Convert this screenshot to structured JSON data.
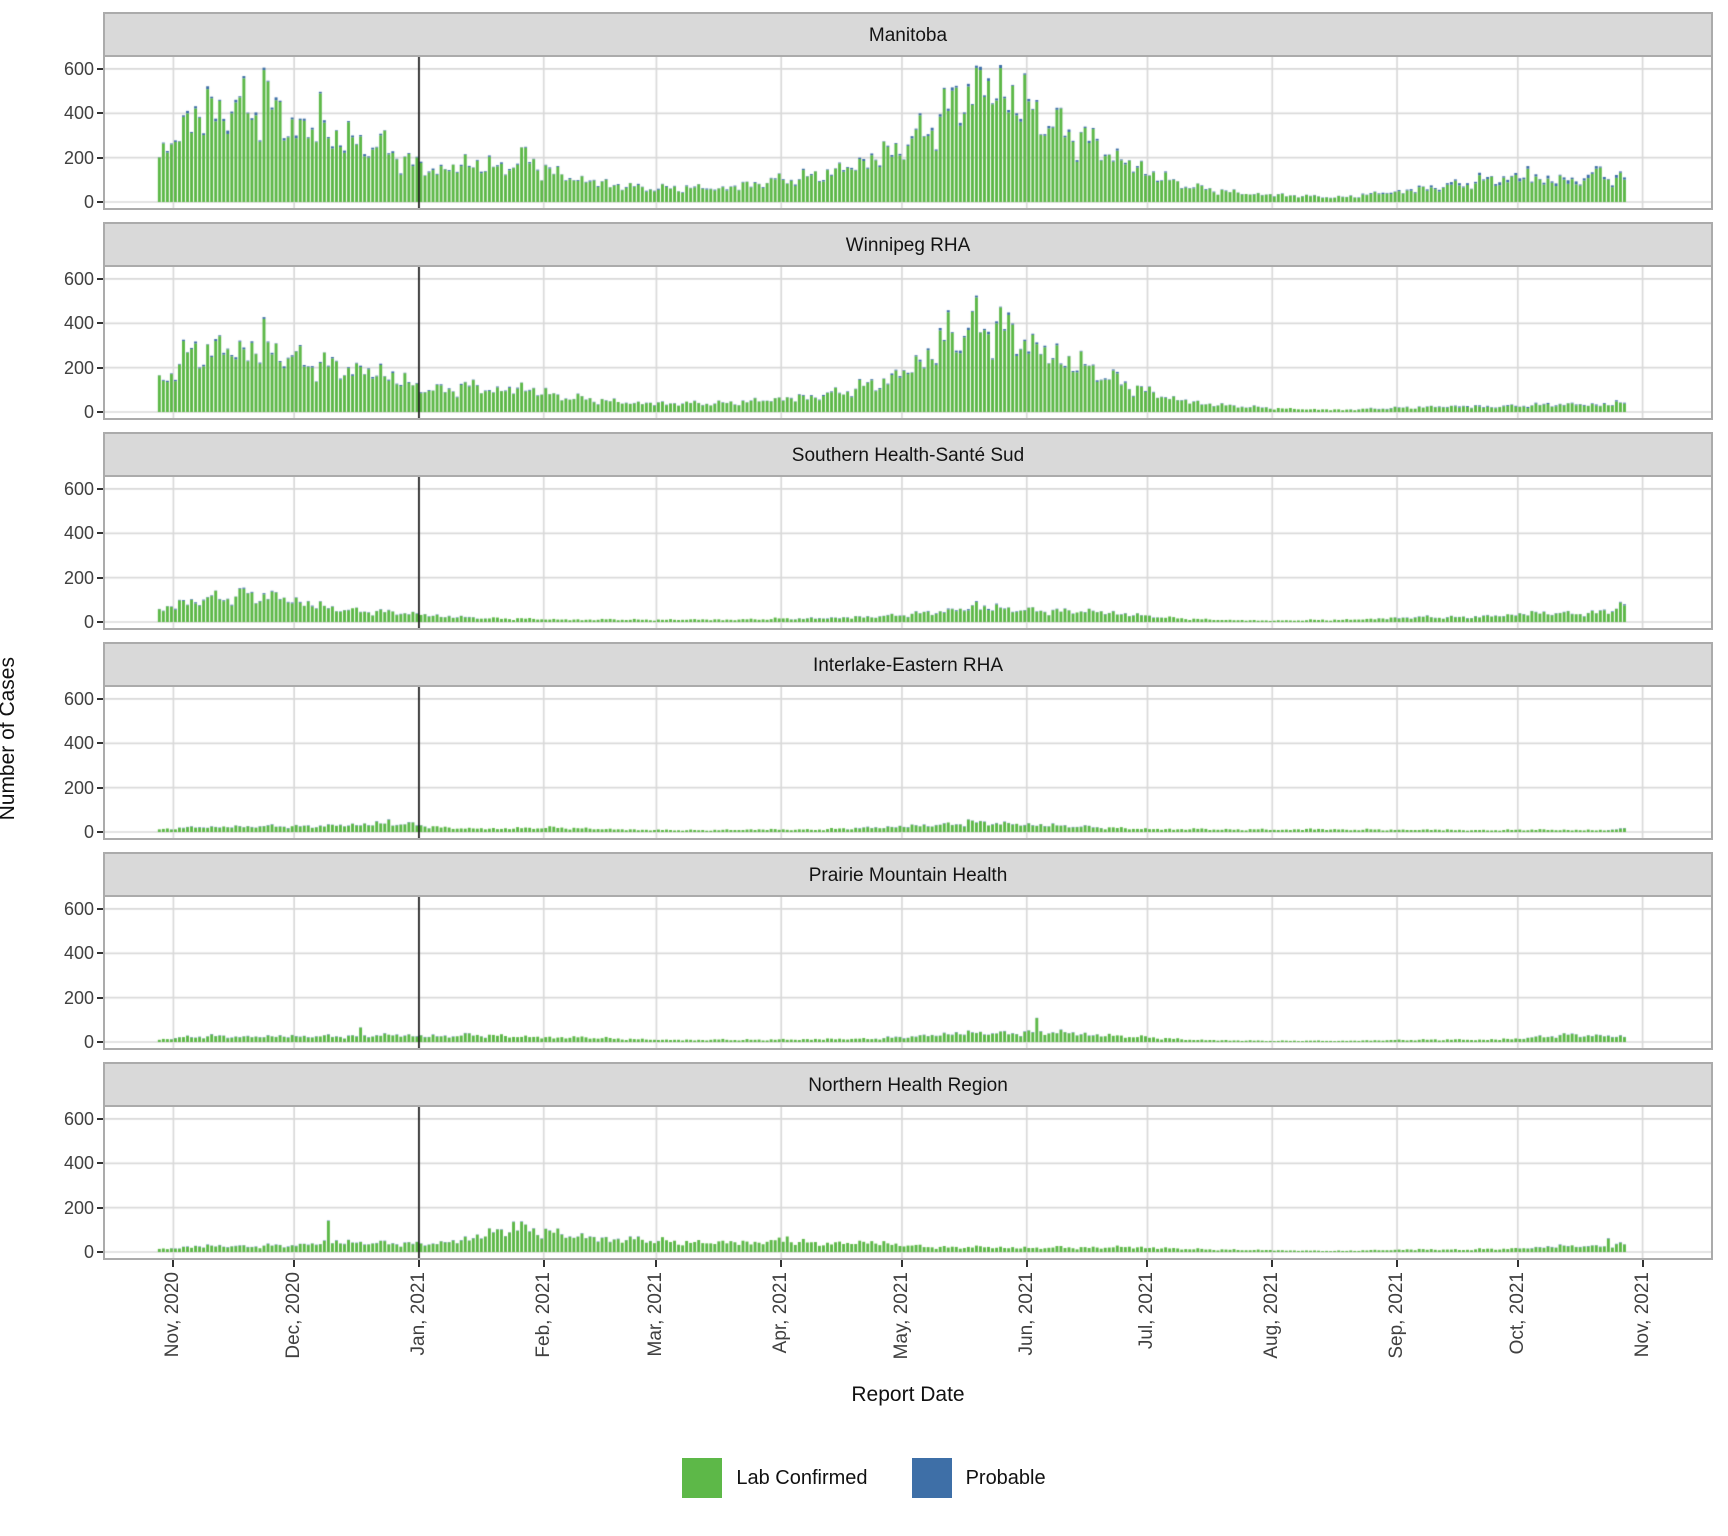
{
  "chart_data": {
    "type": "bar",
    "stacked": true,
    "orientation": "vertical",
    "title": "",
    "xlabel": "Report Date",
    "ylabel": "Number of Cases",
    "yticks": [
      0,
      200,
      400,
      600
    ],
    "ylim": [
      0,
      650
    ],
    "grid": "major-gray-on-white",
    "facet_layout": "6 stacked panels sharing x axis",
    "sampling_note": "Chart shows daily case bars from 2020-10-28 to 2021-10-27. Values below are weekly anchor estimates (cases/day) read from the chart; 'spikes' are standout single-day bars (d = days after 2020-10-28).",
    "anchor_start_date": "2020-10-28",
    "anchor_step_days": 7,
    "anchor_dates": [
      "2020-10-28",
      "2020-11-04",
      "2020-11-11",
      "2020-11-18",
      "2020-11-25",
      "2020-12-02",
      "2020-12-09",
      "2020-12-16",
      "2020-12-23",
      "2020-12-30",
      "2021-01-06",
      "2021-01-13",
      "2021-01-20",
      "2021-01-27",
      "2021-02-03",
      "2021-02-10",
      "2021-02-17",
      "2021-02-24",
      "2021-03-03",
      "2021-03-10",
      "2021-03-17",
      "2021-03-24",
      "2021-03-31",
      "2021-04-07",
      "2021-04-14",
      "2021-04-21",
      "2021-04-28",
      "2021-05-05",
      "2021-05-12",
      "2021-05-19",
      "2021-05-26",
      "2021-06-02",
      "2021-06-09",
      "2021-06-16",
      "2021-06-23",
      "2021-06-30",
      "2021-07-07",
      "2021-07-14",
      "2021-07-21",
      "2021-07-28",
      "2021-08-04",
      "2021-08-11",
      "2021-08-18",
      "2021-08-25",
      "2021-09-01",
      "2021-09-08",
      "2021-09-15",
      "2021-09-22",
      "2021-09-29",
      "2021-10-06",
      "2021-10-13",
      "2021-10-20",
      "2021-10-27"
    ],
    "reference_line_date": "2021-01-01",
    "reference_line_day": 65,
    "x_ticks": [
      {
        "label": "Nov, 2020",
        "day": 4
      },
      {
        "label": "Dec, 2020",
        "day": 34
      },
      {
        "label": "Jan, 2021",
        "day": 65
      },
      {
        "label": "Feb, 2021",
        "day": 96
      },
      {
        "label": "Mar, 2021",
        "day": 124
      },
      {
        "label": "Apr, 2021",
        "day": 155
      },
      {
        "label": "May, 2021",
        "day": 185
      },
      {
        "label": "Jun, 2021",
        "day": 216
      },
      {
        "label": "Jul, 2021",
        "day": 246
      },
      {
        "label": "Aug, 2021",
        "day": 277
      },
      {
        "label": "Sep, 2021",
        "day": 308
      },
      {
        "label": "Oct, 2021",
        "day": 338
      },
      {
        "label": "Nov, 2021",
        "day": 369
      }
    ],
    "panels": [
      {
        "title": "Manitoba",
        "lab_confirmed": [
          190,
          380,
          420,
          430,
          420,
          330,
          300,
          270,
          250,
          170,
          140,
          180,
          150,
          200,
          130,
          100,
          80,
          65,
          60,
          65,
          60,
          80,
          100,
          110,
          140,
          180,
          230,
          300,
          420,
          540,
          500,
          420,
          330,
          280,
          200,
          140,
          90,
          60,
          45,
          35,
          30,
          25,
          20,
          35,
          45,
          60,
          75,
          95,
          105,
          100,
          90,
          115,
          105
        ],
        "probable": [
          3,
          5,
          6,
          6,
          6,
          5,
          5,
          4,
          4,
          3,
          3,
          3,
          3,
          3,
          2,
          2,
          2,
          2,
          2,
          2,
          2,
          2,
          2,
          3,
          3,
          4,
          4,
          5,
          6,
          7,
          6,
          5,
          5,
          4,
          4,
          3,
          2,
          2,
          1,
          1,
          1,
          1,
          1,
          2,
          3,
          4,
          5,
          5,
          6,
          6,
          7,
          6,
          6
        ],
        "spikes": [
          {
            "d": 26,
            "v": 595
          },
          {
            "d": 40,
            "v": 490
          },
          {
            "d": 204,
            "v": 595
          },
          {
            "d": 340,
            "v": 150
          },
          {
            "d": 358,
            "v": 155
          }
        ]
      },
      {
        "title": "Winnipeg RHA",
        "lab_confirmed": [
          130,
          260,
          290,
          280,
          290,
          230,
          210,
          190,
          175,
          120,
          95,
          120,
          95,
          110,
          75,
          60,
          48,
          40,
          38,
          40,
          38,
          48,
          60,
          65,
          85,
          115,
          150,
          230,
          310,
          400,
          380,
          300,
          240,
          200,
          140,
          95,
          60,
          38,
          28,
          20,
          15,
          12,
          10,
          14,
          18,
          22,
          25,
          22,
          25,
          30,
          35,
          30,
          40
        ],
        "probable": [
          2,
          4,
          4,
          4,
          4,
          3,
          3,
          3,
          3,
          2,
          2,
          2,
          2,
          2,
          1,
          1,
          1,
          1,
          1,
          1,
          1,
          1,
          1,
          2,
          2,
          2,
          3,
          4,
          5,
          5,
          5,
          4,
          4,
          3,
          3,
          2,
          1,
          1,
          1,
          1,
          0,
          0,
          0,
          1,
          1,
          1,
          2,
          2,
          2,
          2,
          2,
          2,
          2
        ],
        "spikes": [
          {
            "d": 26,
            "v": 420
          },
          {
            "d": 196,
            "v": 450
          }
        ]
      },
      {
        "title": "Southern Health-Santé Sud",
        "lab_confirmed": [
          55,
          90,
          110,
          115,
          120,
          90,
          65,
          50,
          45,
          38,
          25,
          20,
          16,
          15,
          12,
          10,
          12,
          10,
          10,
          12,
          10,
          12,
          15,
          15,
          18,
          22,
          28,
          38,
          50,
          65,
          60,
          52,
          48,
          50,
          38,
          28,
          18,
          12,
          9,
          7,
          7,
          9,
          10,
          14,
          18,
          22,
          20,
          24,
          32,
          42,
          38,
          40,
          65
        ],
        "probable": [
          1,
          2,
          2,
          2,
          2,
          2,
          1,
          1,
          1,
          1,
          1,
          1,
          0,
          0,
          0,
          0,
          0,
          0,
          0,
          0,
          0,
          0,
          0,
          1,
          1,
          1,
          1,
          1,
          2,
          2,
          2,
          1,
          1,
          1,
          1,
          1,
          0,
          0,
          0,
          0,
          0,
          0,
          0,
          0,
          1,
          1,
          1,
          1,
          1,
          1,
          1,
          1,
          2
        ],
        "spikes": [
          {
            "d": 21,
            "v": 150
          },
          {
            "d": 203,
            "v": 90
          },
          {
            "d": 363,
            "v": 88
          }
        ]
      },
      {
        "title": "Interlake-Eastern RHA",
        "lab_confirmed": [
          12,
          20,
          22,
          24,
          26,
          24,
          28,
          32,
          38,
          34,
          20,
          16,
          15,
          18,
          20,
          16,
          13,
          10,
          9,
          8,
          9,
          11,
          12,
          10,
          14,
          18,
          22,
          28,
          34,
          42,
          38,
          32,
          28,
          22,
          18,
          14,
          12,
          14,
          10,
          12,
          10,
          14,
          10,
          11,
          9,
          11,
          9,
          8,
          9,
          11,
          9,
          8,
          13
        ],
        "probable": [
          0,
          1,
          1,
          1,
          1,
          1,
          1,
          1,
          1,
          1,
          0,
          0,
          0,
          0,
          0,
          0,
          0,
          0,
          0,
          0,
          0,
          0,
          0,
          0,
          0,
          1,
          1,
          1,
          1,
          1,
          1,
          1,
          1,
          1,
          0,
          0,
          0,
          0,
          0,
          0,
          0,
          0,
          0,
          0,
          0,
          0,
          0,
          0,
          0,
          0,
          0,
          0,
          1
        ],
        "spikes": [
          {
            "d": 57,
            "v": 55
          },
          {
            "d": 201,
            "v": 56
          }
        ]
      },
      {
        "title": "Prairie Mountain Health",
        "lab_confirmed": [
          12,
          22,
          26,
          22,
          26,
          24,
          26,
          24,
          32,
          28,
          24,
          32,
          28,
          24,
          20,
          22,
          16,
          12,
          10,
          9,
          11,
          9,
          11,
          12,
          14,
          14,
          18,
          26,
          36,
          42,
          38,
          44,
          45,
          32,
          28,
          22,
          14,
          9,
          7,
          6,
          5,
          6,
          5,
          7,
          9,
          10,
          11,
          10,
          14,
          22,
          32,
          28,
          24
        ],
        "probable": [
          0,
          1,
          1,
          1,
          1,
          1,
          1,
          1,
          1,
          1,
          1,
          1,
          0,
          0,
          0,
          0,
          0,
          0,
          0,
          0,
          0,
          0,
          0,
          0,
          0,
          0,
          1,
          1,
          1,
          1,
          1,
          1,
          1,
          1,
          0,
          0,
          0,
          0,
          0,
          0,
          0,
          0,
          0,
          0,
          0,
          0,
          0,
          0,
          0,
          1,
          1,
          1,
          1
        ],
        "spikes": [
          {
            "d": 50,
            "v": 65
          },
          {
            "d": 218,
            "v": 108
          }
        ]
      },
      {
        "title": "Northern Health Region",
        "lab_confirmed": [
          12,
          22,
          28,
          24,
          28,
          30,
          45,
          42,
          40,
          36,
          40,
          60,
          95,
          105,
          85,
          70,
          55,
          58,
          48,
          42,
          46,
          42,
          52,
          42,
          38,
          46,
          36,
          26,
          20,
          24,
          20,
          18,
          22,
          18,
          24,
          20,
          16,
          12,
          10,
          9,
          7,
          6,
          5,
          8,
          10,
          12,
          10,
          13,
          15,
          20,
          28,
          24,
          35
        ],
        "probable": [
          0,
          1,
          1,
          1,
          1,
          1,
          1,
          1,
          1,
          1,
          1,
          1,
          1,
          1,
          1,
          1,
          1,
          1,
          0,
          0,
          0,
          0,
          0,
          0,
          0,
          0,
          0,
          0,
          0,
          0,
          0,
          0,
          0,
          0,
          0,
          0,
          0,
          0,
          0,
          0,
          0,
          0,
          0,
          0,
          0,
          0,
          0,
          0,
          0,
          1,
          1,
          1,
          1
        ],
        "spikes": [
          {
            "d": 42,
            "v": 140
          },
          {
            "d": 88,
            "v": 135
          },
          {
            "d": 156,
            "v": 70
          },
          {
            "d": 360,
            "v": 60
          }
        ]
      }
    ],
    "legend": [
      {
        "label": "Lab Confirmed",
        "color": "#5db848"
      },
      {
        "label": "Probable",
        "color": "#3e6fa7"
      }
    ],
    "colors": {
      "bar_green": "#5db848",
      "bar_blue": "#3e6fa7",
      "strip_fill": "#d9d9d9",
      "panel_border": "#ababab",
      "gridline": "#d9d9d9",
      "axis_text": "#404040",
      "reference_line": "#000000"
    }
  }
}
